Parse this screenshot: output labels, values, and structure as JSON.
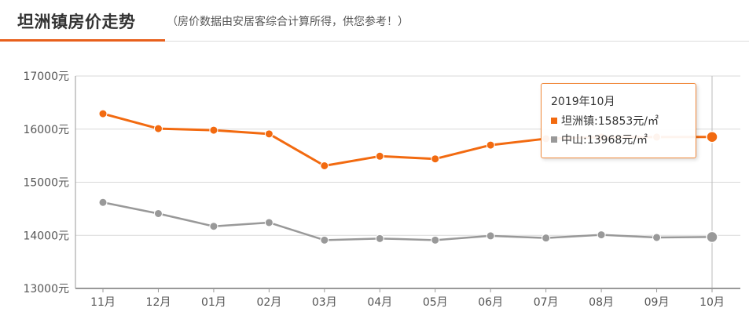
{
  "header": {
    "title": "坦洲镇房价走势",
    "subtitle": "（房价数据由安居客综合计算所得，供您参考！）"
  },
  "tooltip": {
    "date": "2019年10月",
    "rows": [
      {
        "label": "坦洲镇:15853元/㎡",
        "color": "#f26a10"
      },
      {
        "label": "中山:13968元/㎡",
        "color": "#999999"
      }
    ]
  },
  "chart_data": {
    "type": "line",
    "categories": [
      "11月",
      "12月",
      "01月",
      "02月",
      "03月",
      "04月",
      "05月",
      "06月",
      "07月",
      "08月",
      "09月",
      "10月"
    ],
    "ylim": [
      13000,
      17000
    ],
    "yticks": [
      "13000元",
      "14000元",
      "15000元",
      "16000元",
      "17000元"
    ],
    "grid": true,
    "series": [
      {
        "name": "坦洲镇",
        "color": "#f26a10",
        "values": [
          16290,
          16010,
          15980,
          15910,
          15310,
          15490,
          15440,
          15700,
          15820,
          15850,
          15850,
          15853
        ]
      },
      {
        "name": "中山",
        "color": "#999999",
        "values": [
          14620,
          14410,
          14170,
          14240,
          13910,
          13940,
          13910,
          13990,
          13950,
          14010,
          13960,
          13968
        ]
      }
    ]
  }
}
